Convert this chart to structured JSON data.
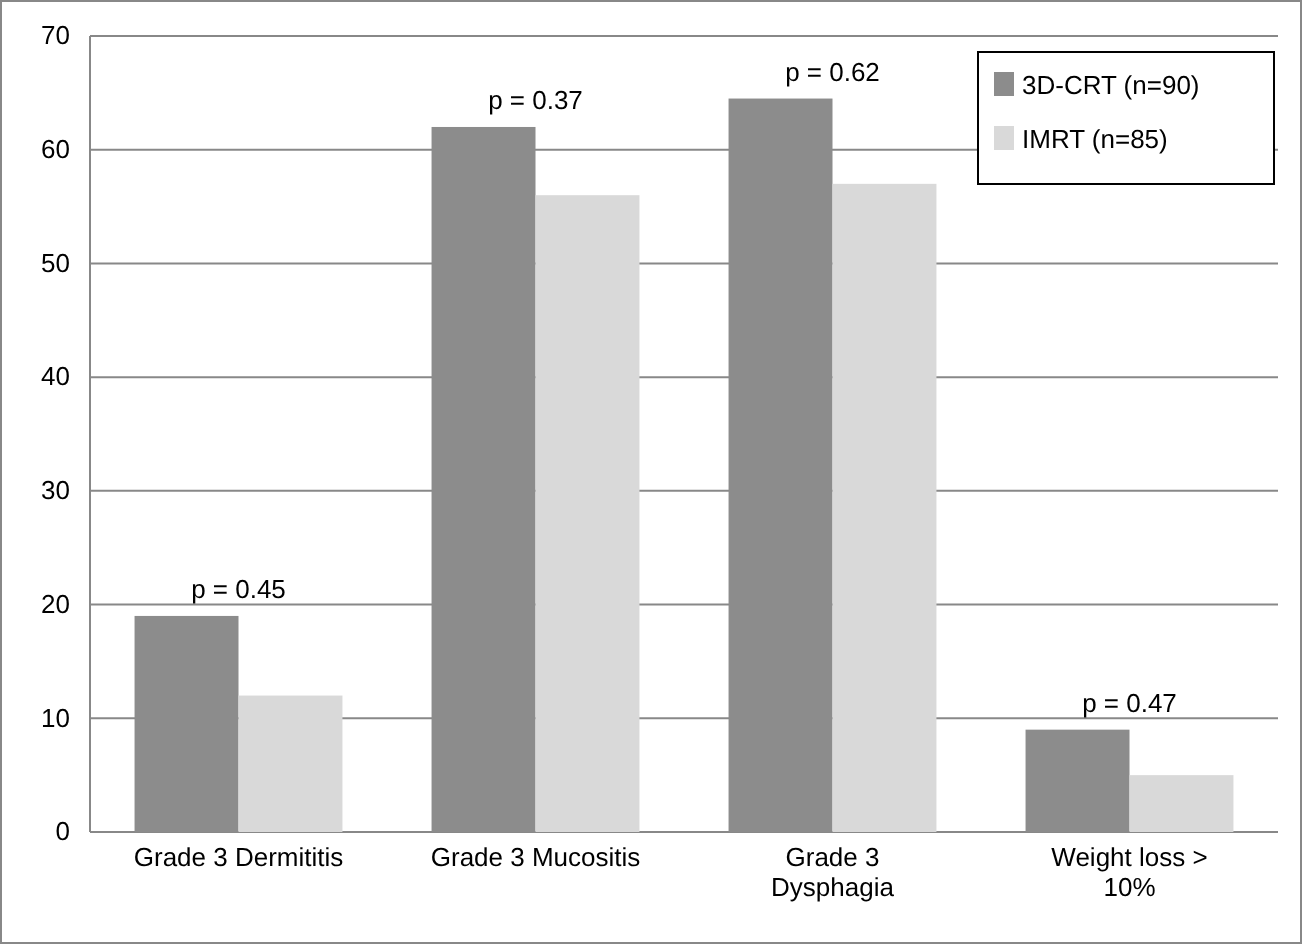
{
  "chart_data": {
    "type": "bar",
    "categories": [
      "Grade 3 Dermititis",
      "Grade 3 Mucositis",
      "Grade 3 Dysphagia",
      "Weight loss > 10%"
    ],
    "series": [
      {
        "name": "3D-CRT (n=90)",
        "color": "#8c8c8c",
        "values": [
          19,
          62,
          64.5,
          9
        ]
      },
      {
        "name": "IMRT (n=85)",
        "color": "#d9d9d9",
        "values": [
          12,
          56,
          57,
          5
        ]
      }
    ],
    "ylim": [
      0,
      70
    ],
    "yticks": [
      0,
      10,
      20,
      30,
      40,
      50,
      60,
      70
    ],
    "grid": "y",
    "legend": "top right",
    "annotations": [
      "p = 0.45",
      "p = 0.37",
      "p = 0.62",
      "p = 0.47"
    ]
  }
}
